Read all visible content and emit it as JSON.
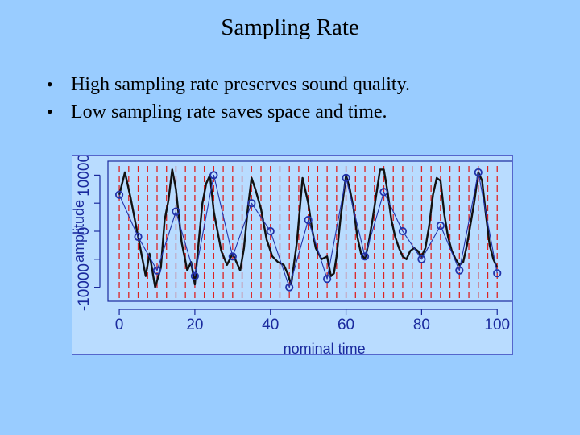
{
  "slide": {
    "title": "Sampling Rate",
    "bullets": [
      "High sampling rate preserves sound quality.",
      "Low sampling rate saves space and time."
    ]
  },
  "colors": {
    "background": "#99ccff",
    "plot_background": "#b9dcff",
    "axis": "#1a2a9e",
    "original_wave": "#111111",
    "sampled_line": "#2233aa",
    "sample_marks": "#dd2222"
  },
  "chart_data": {
    "type": "line",
    "xlabel": "nominal time",
    "ylabel": "amplitude",
    "xlim": [
      -3,
      104
    ],
    "ylim": [
      -12500,
      12500
    ],
    "x_ticks": [
      0,
      20,
      40,
      60,
      80,
      100
    ],
    "x_tick_labels": [
      "0",
      "20",
      "40",
      "60",
      "80",
      "100"
    ],
    "y_ticks": [
      -10000,
      -5000,
      0,
      5000,
      10000
    ],
    "y_tick_labels": [
      "-10000",
      "",
      "0",
      "",
      "10000"
    ],
    "grid": false,
    "legend": "none",
    "sample_lines_x": [
      0,
      2.5,
      5,
      7.5,
      10,
      12.5,
      15,
      17.5,
      20,
      22.5,
      25,
      27.5,
      30,
      32.5,
      35,
      37.5,
      40,
      42.5,
      45,
      47.5,
      50,
      52.5,
      55,
      57.5,
      60,
      62.5,
      65,
      67.5,
      70,
      72.5,
      75,
      77.5,
      80,
      82.5,
      85,
      87.5,
      90,
      92.5,
      95,
      97.5,
      100
    ],
    "series": [
      {
        "style": "thick-line",
        "x": [
          0,
          1.5,
          3,
          5,
          7,
          8,
          9.5,
          11,
          12,
          13,
          14,
          15,
          16.5,
          18,
          19,
          20,
          21,
          22,
          23,
          24,
          25,
          27,
          28.5,
          30,
          31,
          32,
          33,
          34,
          35,
          36,
          37.5,
          39,
          40.5,
          42,
          43.5,
          44.5,
          45.5,
          47,
          48.5,
          50,
          51,
          52,
          53.5,
          55,
          56,
          56.8,
          57.5,
          58.5,
          60,
          61,
          62,
          63,
          64,
          65,
          66,
          67,
          68,
          69,
          70,
          71,
          72,
          73,
          74,
          75,
          76,
          77,
          78,
          79,
          80,
          81,
          82,
          83,
          84,
          85,
          86,
          87,
          88,
          89,
          90,
          91,
          92,
          93,
          94,
          95,
          96,
          97,
          98,
          99,
          100
        ],
        "y": [
          6500,
          10500,
          6000,
          -1000,
          -8000,
          -4000,
          -10000,
          -6500,
          2000,
          5500,
          11000,
          7500,
          -2000,
          -7000,
          -5500,
          -9500,
          -2000,
          5000,
          8500,
          10000,
          3500,
          -3500,
          -6000,
          -4000,
          -5500,
          -7000,
          -3000,
          4000,
          9500,
          7500,
          4000,
          -1500,
          -4500,
          -5500,
          -6000,
          -7500,
          -9500,
          -2000,
          9500,
          5000,
          400,
          -3000,
          -5000,
          -4500,
          -8000,
          -7500,
          -4500,
          2000,
          10000,
          7500,
          4000,
          -1000,
          -4000,
          -5000,
          -2000,
          2000,
          6500,
          11000,
          11000,
          7000,
          2000,
          -1000,
          -3000,
          -4500,
          -5000,
          -3500,
          -3000,
          -3500,
          -4500,
          -3000,
          1000,
          6500,
          9500,
          9000,
          3000,
          -1000,
          -3500,
          -5000,
          -6000,
          -5500,
          -2500,
          1500,
          5500,
          10500,
          9000,
          3000,
          -2500,
          -5000,
          -6500
        ]
      },
      {
        "style": "thin-line-with-circles",
        "x": [
          0,
          5,
          10,
          15,
          20,
          25,
          30,
          35,
          40,
          45,
          50,
          55,
          60,
          65,
          70,
          75,
          80,
          85,
          90,
          95,
          100
        ],
        "y": [
          6500,
          -1000,
          -7000,
          3500,
          -8000,
          10000,
          -4500,
          5000,
          0,
          -10000,
          2000,
          -8500,
          9500,
          -4500,
          7000,
          0,
          -5000,
          1000,
          -7000,
          10500,
          -7500
        ]
      }
    ]
  }
}
